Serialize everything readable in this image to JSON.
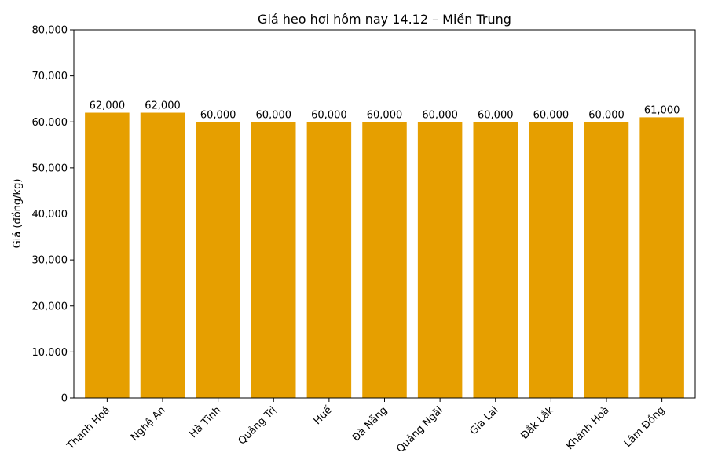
{
  "chart_data": {
    "type": "bar",
    "title": "Giá heo hơi hôm nay 14.12 – Miền Trung",
    "xlabel": "",
    "ylabel": "Giá (đồng/kg)",
    "categories": [
      "Thanh Hoá",
      "Nghệ An",
      "Hà Tĩnh",
      "Quảng Trị",
      "Huế",
      "Đà Nẵng",
      "Quảng Ngãi",
      "Gia Lai",
      "Đắk Lắk",
      "Khánh Hoà",
      "Lâm Đồng"
    ],
    "values": [
      62000,
      62000,
      60000,
      60000,
      60000,
      60000,
      60000,
      60000,
      60000,
      60000,
      61000
    ],
    "value_labels": [
      "62,000",
      "62,000",
      "60,000",
      "60,000",
      "60,000",
      "60,000",
      "60,000",
      "60,000",
      "60,000",
      "60,000",
      "61,000"
    ],
    "ylim": [
      0,
      80000
    ],
    "yticks": [
      0,
      10000,
      20000,
      30000,
      40000,
      50000,
      60000,
      70000,
      80000
    ],
    "ytick_labels": [
      "0",
      "10,000",
      "20,000",
      "30,000",
      "40,000",
      "50,000",
      "60,000",
      "70,000",
      "80,000"
    ],
    "bar_color": "#E69F00",
    "grid": false,
    "legend": "none"
  }
}
